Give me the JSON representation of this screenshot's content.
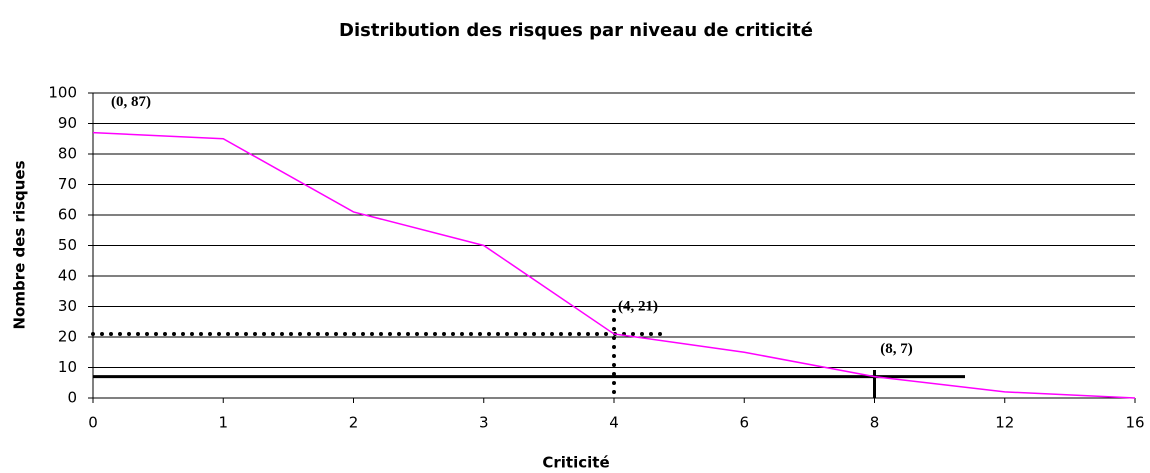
{
  "chart_data": {
    "type": "line",
    "title": "Distribution des risques par niveau de criticité",
    "x_label": "Criticité",
    "y_label": "Nombre des risques",
    "categories": [
      "0",
      "1",
      "2",
      "3",
      "4",
      "6",
      "8",
      "12",
      "16"
    ],
    "series": [
      {
        "name": "Nombre des risques",
        "color": "#ff00ff",
        "values": [
          87,
          85,
          61,
          50,
          21,
          15,
          7,
          2,
          0
        ]
      }
    ],
    "ylim": [
      0,
      100
    ],
    "yticks": [
      0,
      10,
      20,
      30,
      40,
      50,
      60,
      70,
      80,
      90,
      100
    ],
    "grid": true,
    "annotations": [
      {
        "text": "(0, 87)",
        "x": "0",
        "y": 87
      },
      {
        "text": "(4, 21)",
        "x": "4",
        "y": 21
      },
      {
        "text": "(8, 7)",
        "x": "8",
        "y": 7
      }
    ],
    "guides": [
      {
        "x": "4",
        "y": 21,
        "style": "dotted"
      },
      {
        "x": "8",
        "y": 7,
        "style": "solid"
      }
    ]
  }
}
